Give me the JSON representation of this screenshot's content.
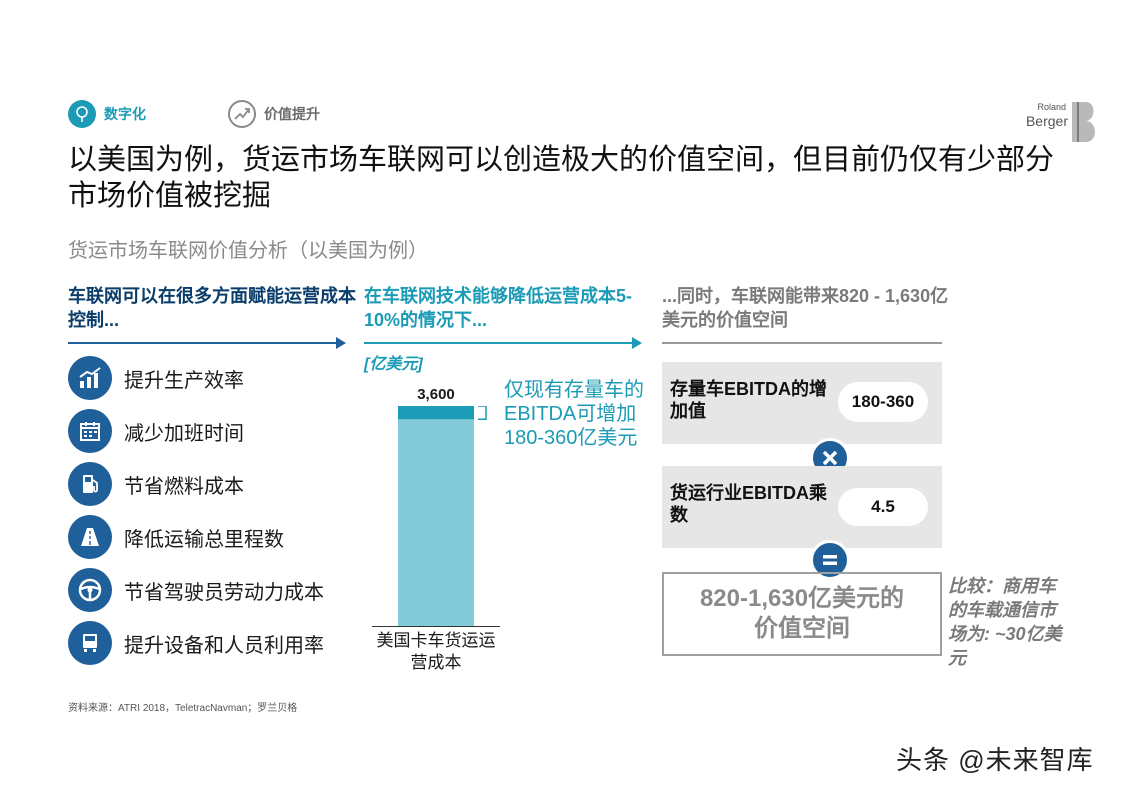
{
  "header": {
    "tags": [
      {
        "label": "数字化",
        "icon": "digital-tree-icon"
      },
      {
        "label": "价值提升",
        "icon": "value-chart-icon"
      }
    ],
    "logo": {
      "line1": "Roland",
      "line2": "Berger"
    }
  },
  "title": "以美国为例，货运市场车联网可以创造极大的价值空间，但目前仍仅有少部分市场价值被挖掘",
  "subtitle": "货运市场车联网价值分析（以美国为例）",
  "columns": {
    "left_heading": "车联网可以在很多方面赋能运营成本控制...",
    "middle_heading": "在车联网技术能够降低运营成本5-10%的情况下...",
    "right_heading": "...同时，车联网能带来820 - 1,630亿美元的价值空间"
  },
  "benefits": [
    {
      "label": "提升生产效率",
      "icon": "productivity-chart-icon"
    },
    {
      "label": "减少加班时间",
      "icon": "calendar-icon"
    },
    {
      "label": "节省燃料成本",
      "icon": "fuel-pump-icon"
    },
    {
      "label": "降低运输总里程数",
      "icon": "road-icon"
    },
    {
      "label": "节省驾驶员劳动力成本",
      "icon": "steering-wheel-icon"
    },
    {
      "label": "提升设备和人员利用率",
      "icon": "truck-icon"
    }
  ],
  "chart_data": {
    "type": "bar",
    "unit": "[亿美元]",
    "categories": [
      "美国卡车货运运营成本"
    ],
    "values": [
      3600
    ],
    "value_labels": [
      "3,600"
    ],
    "stack": {
      "top_segment_low": 180,
      "top_segment_high": 360
    },
    "annotation": "仅现有存量车的EBITDA可增加180-360亿美元",
    "colors": {
      "bar": "#84cbd9",
      "top_segment": "#1b9bb5"
    }
  },
  "calculation": {
    "row1_label": "存量车EBITDA的增加值",
    "row1_value": "180-360",
    "row2_label": "货运行业EBITDA乘数",
    "row2_value": "4.5",
    "result": "820-1,630亿美元的价值空间",
    "comparison": "比较：商用车的车载通信市场为: ~30亿美元"
  },
  "source": "资料来源：ATRI 2018，TeletracNavman；罗兰贝格",
  "watermark": "头条 @未来智库",
  "colors": {
    "dark_blue": "#1f5f9a",
    "teal": "#1b9bb5",
    "grey_box": "#e6e6e6"
  }
}
